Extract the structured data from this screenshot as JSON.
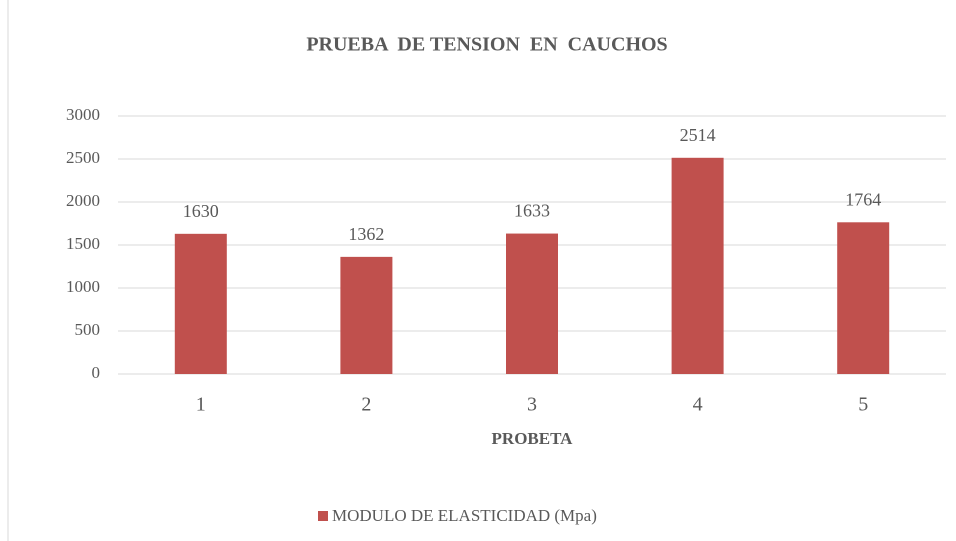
{
  "chart_data": {
    "type": "bar",
    "title": "PRUEBA  DE TENSION  EN  CAUCHOS",
    "x_label": "PROBETA",
    "categories": [
      "1",
      "2",
      "3",
      "4",
      "5"
    ],
    "series": [
      {
        "name": "MODULO DE ELASTICIDAD (Mpa)",
        "color": "#c0504d",
        "values": [
          1630,
          1362,
          1633,
          2514,
          1764
        ]
      }
    ],
    "ylim": [
      0,
      3000
    ],
    "yticks": [
      0,
      500,
      1000,
      1500,
      2000,
      2500,
      3000
    ],
    "grid": true,
    "legend": "bottom",
    "data_labels": true
  }
}
